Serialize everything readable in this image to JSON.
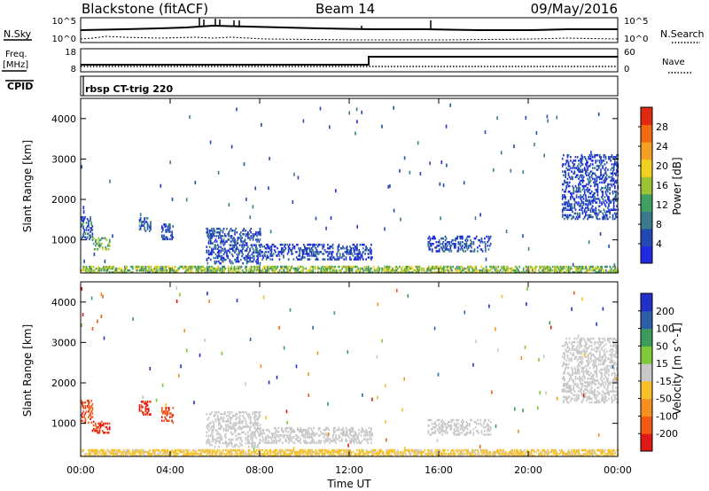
{
  "header": {
    "station": "Blackstone (fitACF)",
    "beam": "Beam 14",
    "date": "09/May/2016"
  },
  "noise_panel": {
    "left_label": "N.Sky",
    "right_label": "N.Search",
    "left_ticks": [
      "10^5",
      "10^0"
    ],
    "right_ticks": [
      "10^5",
      "10^0"
    ]
  },
  "freq_panel": {
    "left_label_1": "Freq.",
    "left_label_2": "[MHz]",
    "right_label": "Nave",
    "left_ticks": [
      "18",
      "8"
    ],
    "right_ticks": [
      "60",
      "0"
    ]
  },
  "cpid_panel": {
    "label": "CPID",
    "program": "rbsp CT-trig 220"
  },
  "colors": {
    "power_scale": [
      "#1f2be0",
      "#2448b4",
      "#3a7a8a",
      "#3fa060",
      "#9dc234",
      "#f0d020",
      "#f5a020",
      "#f26a10",
      "#e02a10"
    ],
    "velocity_scale": [
      "#e01818",
      "#f25a14",
      "#f59020",
      "#f5c02a",
      "#c8c8c8",
      "#7ec83a",
      "#3c9a5a",
      "#2d5fa8",
      "#2030c8"
    ]
  },
  "chart_data": [
    {
      "type": "heatmap",
      "title": "",
      "xlabel": "",
      "ylabel": "Slant Range [km]",
      "x_ticks": [
        "00:00",
        "04:00",
        "08:00",
        "12:00",
        "16:00",
        "20:00",
        "00:00"
      ],
      "y_ticks": [
        "1000",
        "2000",
        "3000",
        "4000"
      ],
      "xlim": [
        0,
        24
      ],
      "ylim": [
        180,
        4500
      ],
      "colorbar": {
        "label": "Power [dB]",
        "ticks": [
          "4",
          "8",
          "12",
          "16",
          "20",
          "24",
          "28"
        ],
        "range": [
          0,
          30
        ]
      },
      "echo_regions": [
        {
          "t_start": 0.0,
          "t_end": 24.0,
          "r_min": 180,
          "r_max": 360,
          "level": 14
        },
        {
          "t_start": 0.0,
          "t_end": 0.5,
          "r_min": 1000,
          "r_max": 1550,
          "level": 6
        },
        {
          "t_start": 0.5,
          "t_end": 1.3,
          "r_min": 750,
          "r_max": 1050,
          "level": 12
        },
        {
          "t_start": 2.6,
          "t_end": 3.1,
          "r_min": 1200,
          "r_max": 1550,
          "level": 6
        },
        {
          "t_start": 3.6,
          "t_end": 4.1,
          "r_min": 1000,
          "r_max": 1400,
          "level": 5
        },
        {
          "t_start": 5.6,
          "t_end": 8.0,
          "r_min": 400,
          "r_max": 1300,
          "level": 5
        },
        {
          "t_start": 8.0,
          "t_end": 13.0,
          "r_min": 500,
          "r_max": 900,
          "level": 4
        },
        {
          "t_start": 15.5,
          "t_end": 18.3,
          "r_min": 700,
          "r_max": 1100,
          "level": 5
        },
        {
          "t_start": 21.5,
          "t_end": 24.0,
          "r_min": 1500,
          "r_max": 3100,
          "level": 4
        }
      ]
    },
    {
      "type": "heatmap",
      "title": "",
      "xlabel": "Time UT",
      "ylabel": "Slant Range [km]",
      "x_ticks": [
        "00:00",
        "04:00",
        "08:00",
        "12:00",
        "16:00",
        "20:00",
        "00:00"
      ],
      "y_ticks": [
        "1000",
        "2000",
        "3000",
        "4000"
      ],
      "xlim": [
        0,
        24
      ],
      "ylim": [
        180,
        4500
      ],
      "colorbar": {
        "label": "Velocity [m s^-1]",
        "ticks": [
          "-200",
          "-100",
          "-50",
          "-15",
          "15",
          "50",
          "100",
          "200"
        ],
        "range": [
          -250,
          250
        ]
      },
      "echo_regions": [
        {
          "t_start": 0.0,
          "t_end": 24.0,
          "r_min": 180,
          "r_max": 360,
          "level": -40
        },
        {
          "t_start": 0.0,
          "t_end": 0.5,
          "r_min": 1000,
          "r_max": 1550,
          "level": -180
        },
        {
          "t_start": 0.5,
          "t_end": 1.3,
          "r_min": 750,
          "r_max": 1050,
          "level": -200
        },
        {
          "t_start": 2.6,
          "t_end": 3.1,
          "r_min": 1200,
          "r_max": 1550,
          "level": -200
        },
        {
          "t_start": 3.6,
          "t_end": 4.1,
          "r_min": 1000,
          "r_max": 1400,
          "level": -190
        },
        {
          "t_start": 5.6,
          "t_end": 8.0,
          "r_min": 400,
          "r_max": 1300,
          "level": 0
        },
        {
          "t_start": 8.0,
          "t_end": 13.0,
          "r_min": 500,
          "r_max": 900,
          "level": -5
        },
        {
          "t_start": 15.5,
          "t_end": 18.3,
          "r_min": 700,
          "r_max": 1100,
          "level": 5
        },
        {
          "t_start": 21.5,
          "t_end": 24.0,
          "r_min": 1500,
          "r_max": 3100,
          "level": 5
        }
      ]
    }
  ]
}
